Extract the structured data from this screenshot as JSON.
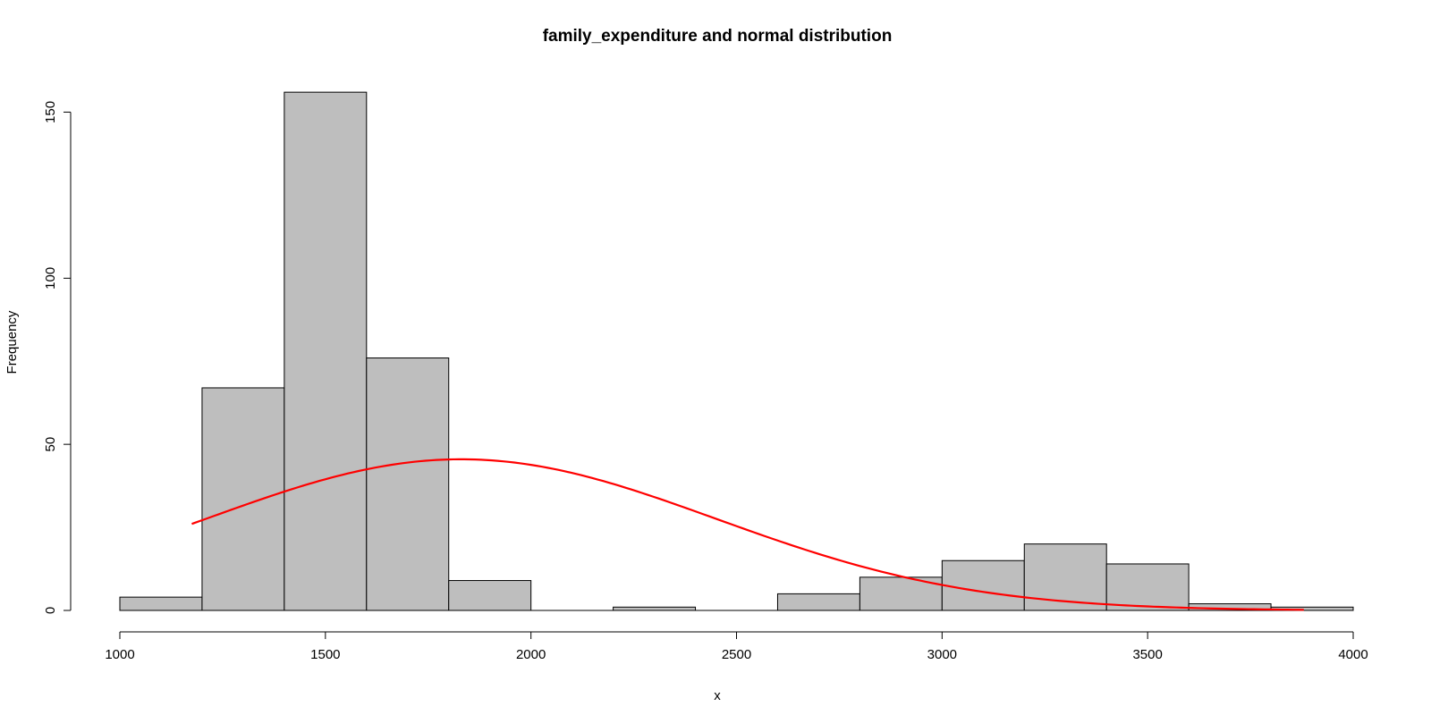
{
  "chart_data": {
    "type": "bar",
    "title": "family_expenditure and normal distribution",
    "xlabel": "x",
    "ylabel": "Frequency",
    "xlim": [
      1000,
      4000
    ],
    "ylim": [
      0,
      160
    ],
    "x_ticks": [
      1000,
      1500,
      2000,
      2500,
      3000,
      3500,
      4000
    ],
    "y_ticks": [
      0,
      50,
      100,
      150
    ],
    "bins": [
      {
        "start": 1000,
        "end": 1200,
        "count": 4
      },
      {
        "start": 1200,
        "end": 1400,
        "count": 67
      },
      {
        "start": 1400,
        "end": 1600,
        "count": 156
      },
      {
        "start": 1600,
        "end": 1800,
        "count": 76
      },
      {
        "start": 1800,
        "end": 2000,
        "count": 9
      },
      {
        "start": 2000,
        "end": 2200,
        "count": 0
      },
      {
        "start": 2200,
        "end": 2400,
        "count": 1
      },
      {
        "start": 2400,
        "end": 2600,
        "count": 0
      },
      {
        "start": 2600,
        "end": 2800,
        "count": 5
      },
      {
        "start": 2800,
        "end": 3000,
        "count": 10
      },
      {
        "start": 3000,
        "end": 3200,
        "count": 15
      },
      {
        "start": 3200,
        "end": 3400,
        "count": 20
      },
      {
        "start": 3400,
        "end": 3600,
        "count": 14
      },
      {
        "start": 3600,
        "end": 3800,
        "count": 2
      },
      {
        "start": 3800,
        "end": 4000,
        "count": 1
      }
    ],
    "normal_curve": {
      "mean": 1830,
      "sd": 620,
      "peak": 45.5,
      "x_range": [
        1175,
        3880
      ]
    },
    "grid": false,
    "colors": {
      "bar_fill": "#bebebe",
      "bar_stroke": "#000000",
      "curve": "#ff0000"
    }
  }
}
